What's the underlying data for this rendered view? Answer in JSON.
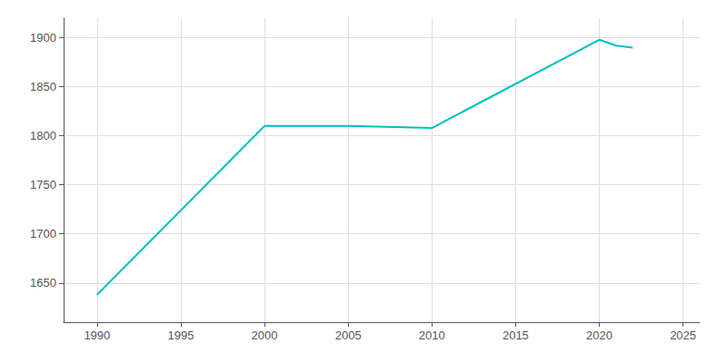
{
  "chart_data": {
    "type": "line",
    "x": [
      1990,
      2000,
      2005,
      2010,
      2020,
      2021,
      2022
    ],
    "values": [
      1638,
      1810,
      1810,
      1808,
      1898,
      1892,
      1890
    ],
    "color": "#00BFBF",
    "xlim": [
      1988,
      2026
    ],
    "xticks": [
      1990,
      1995,
      2000,
      2005,
      2010,
      2015,
      2020,
      2025
    ],
    "ylim": [
      1610,
      1920
    ],
    "yticks": [
      1650,
      1700,
      1750,
      1800,
      1850,
      1900
    ],
    "grid": true
  }
}
